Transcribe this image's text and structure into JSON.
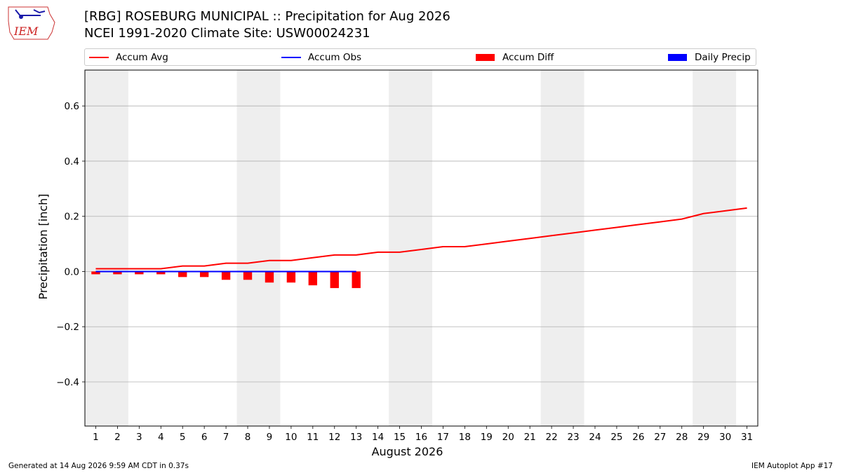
{
  "header": {
    "title_line1": "[RBG] ROSEBURG MUNICIPAL :: Precipitation for Aug 2026",
    "title_line2": "NCEI 1991-2020 Climate Site: USW00024231",
    "logo_text": "IEM"
  },
  "footer": {
    "left": "Generated at 14 Aug 2026 9:59 AM CDT in 0.37s",
    "right": "IEM Autoplot App #17"
  },
  "colors": {
    "accum_avg": "#ff0000",
    "accum_obs": "#0000ff",
    "accum_diff": "#ff0000",
    "daily_precip": "#0000ff",
    "weekend_shade": "#eeeeee",
    "grid": "#b0b0b0"
  },
  "chart_data": {
    "type": "line",
    "title": "[RBG] ROSEBURG MUNICIPAL :: Precipitation for Aug 2026",
    "xlabel": "August 2026",
    "ylabel": "Precipitation [inch]",
    "x": [
      1,
      2,
      3,
      4,
      5,
      6,
      7,
      8,
      9,
      10,
      11,
      12,
      13,
      14,
      15,
      16,
      17,
      18,
      19,
      20,
      21,
      22,
      23,
      24,
      25,
      26,
      27,
      28,
      29,
      30,
      31
    ],
    "xlim": [
      0.5,
      31.5
    ],
    "ylim": [
      -0.56,
      0.73
    ],
    "yticks": [
      -0.4,
      -0.2,
      0.0,
      0.2,
      0.4,
      0.6
    ],
    "ytick_labels": [
      "−0.4",
      "−0.2",
      "0.0",
      "0.2",
      "0.4",
      "0.6"
    ],
    "grid": "horizontal",
    "legend_position": "top",
    "shaded_day_ranges": [
      [
        1,
        2
      ],
      [
        8,
        9
      ],
      [
        15,
        16
      ],
      [
        22,
        23
      ],
      [
        29,
        30
      ]
    ],
    "series": [
      {
        "name": "Accum Avg",
        "kind": "line",
        "x": [
          1,
          2,
          3,
          4,
          5,
          6,
          7,
          8,
          9,
          10,
          11,
          12,
          13,
          14,
          15,
          16,
          17,
          18,
          19,
          20,
          21,
          22,
          23,
          24,
          25,
          26,
          27,
          28,
          29,
          30,
          31
        ],
        "values": [
          0.01,
          0.01,
          0.01,
          0.01,
          0.02,
          0.02,
          0.03,
          0.03,
          0.04,
          0.04,
          0.05,
          0.06,
          0.06,
          0.07,
          0.07,
          0.08,
          0.09,
          0.09,
          0.1,
          0.11,
          0.12,
          0.13,
          0.14,
          0.15,
          0.16,
          0.17,
          0.18,
          0.19,
          0.21,
          0.22,
          0.23
        ]
      },
      {
        "name": "Accum Obs",
        "kind": "line",
        "x": [
          1,
          2,
          3,
          4,
          5,
          6,
          7,
          8,
          9,
          10,
          11,
          12,
          13
        ],
        "values": [
          0,
          0,
          0,
          0,
          0,
          0,
          0,
          0,
          0,
          0,
          0,
          0,
          0
        ]
      },
      {
        "name": "Accum Diff",
        "kind": "bar",
        "x": [
          1,
          2,
          3,
          4,
          5,
          6,
          7,
          8,
          9,
          10,
          11,
          12,
          13
        ],
        "values": [
          -0.01,
          -0.01,
          -0.01,
          -0.01,
          -0.02,
          -0.02,
          -0.03,
          -0.03,
          -0.04,
          -0.04,
          -0.05,
          -0.06,
          -0.06
        ]
      },
      {
        "name": "Daily Precip",
        "kind": "bar",
        "x": [
          1,
          2,
          3,
          4,
          5,
          6,
          7,
          8,
          9,
          10,
          11,
          12,
          13
        ],
        "values": [
          0,
          0,
          0,
          0,
          0,
          0,
          0,
          0,
          0,
          0,
          0,
          0,
          0
        ]
      }
    ]
  }
}
